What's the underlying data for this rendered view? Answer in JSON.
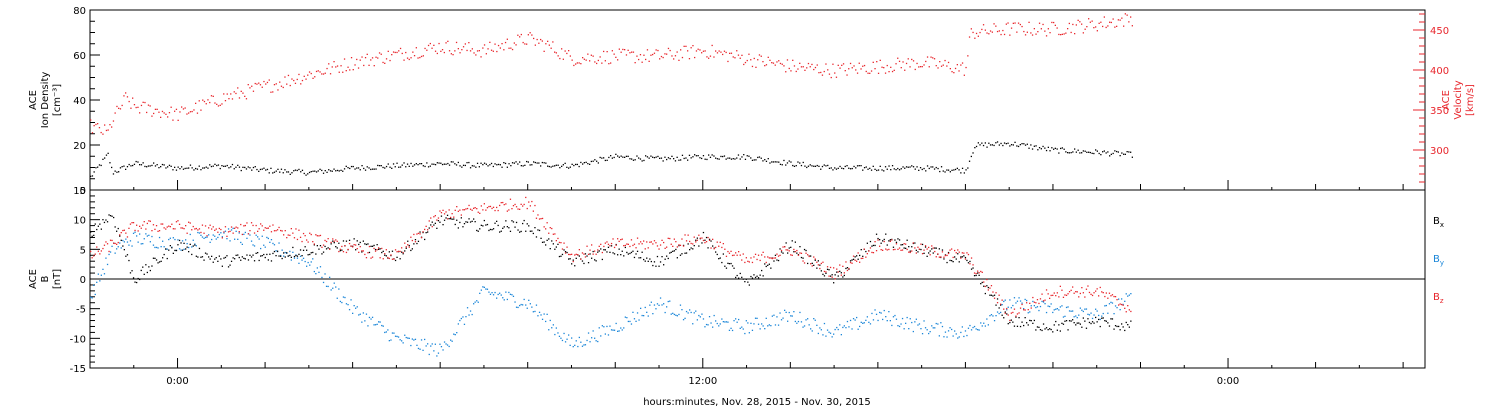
{
  "xlabel": "hours:minutes, Nov. 28, 2015 - Nov. 30, 2015",
  "x_ticks": [
    "0:00",
    "12:00",
    "0:00"
  ],
  "colors": {
    "black": "#000000",
    "red": "#e8262c",
    "blue": "#1a86d8"
  },
  "chart_data": [
    {
      "type": "scatter",
      "panel": "top",
      "ylabel_left": [
        "ACE",
        "Ion Density",
        "[cm⁻³]"
      ],
      "ylabel_right": [
        "ACE",
        "Velocity",
        "[km/s]"
      ],
      "x_unit": "hours since Nov. 28, 2015 00:00",
      "xlim": [
        -2,
        28.5
      ],
      "ylim_left": [
        0,
        80
      ],
      "yticks_left": [
        "0",
        "20",
        "40",
        "60",
        "80"
      ],
      "ylim_right": [
        250,
        475
      ],
      "yticks_right": [
        "300",
        "350",
        "400",
        "450"
      ],
      "series": [
        {
          "name": "Ion Density",
          "axis": "left",
          "color": "black",
          "x": [
            -2,
            -1.5,
            -1.6,
            -1,
            0,
            1,
            2,
            3,
            4,
            5,
            6,
            7,
            8,
            9,
            10,
            11,
            12,
            13,
            14,
            15,
            16,
            17,
            18,
            18.2,
            19,
            20,
            21,
            21.8
          ],
          "y": [
            6,
            8,
            16,
            12,
            10,
            11,
            9,
            8,
            10,
            11,
            12,
            11,
            12,
            11,
            15,
            14,
            15,
            15,
            12,
            10,
            10,
            10,
            9,
            20,
            21,
            18,
            17,
            16
          ]
        },
        {
          "name": "Velocity",
          "axis": "right",
          "color": "red",
          "x": [
            -2,
            -1.6,
            -1.5,
            -1.2,
            -1,
            0,
            1,
            2,
            3,
            4,
            5,
            6,
            7,
            8,
            8.5,
            9,
            10,
            11,
            12,
            13,
            14,
            15,
            16,
            17,
            18,
            18.1,
            18.2,
            19,
            20,
            21,
            21.8
          ],
          "y": [
            330,
            322,
            338,
            365,
            355,
            345,
            365,
            380,
            395,
            410,
            420,
            430,
            425,
            440,
            430,
            415,
            418,
            418,
            425,
            415,
            405,
            400,
            405,
            410,
            402,
            445,
            448,
            452,
            452,
            458,
            465
          ]
        }
      ]
    },
    {
      "type": "scatter",
      "panel": "bottom",
      "ylabel_left": [
        "ACE",
        "B",
        "[nT]"
      ],
      "xlim": [
        -2,
        28.5
      ],
      "ylim": [
        -15,
        15
      ],
      "yticks": [
        "-15",
        "-10",
        "-5",
        "0",
        "5",
        "10",
        "15"
      ],
      "legend": [
        "Bx",
        "By",
        "Bz"
      ],
      "legend_placement": "right",
      "zero_line": true,
      "series": [
        {
          "name": "Bx",
          "color": "black",
          "x": [
            -2,
            -1.5,
            -1,
            0,
            1,
            2,
            3,
            4,
            5,
            6,
            7,
            8,
            9,
            10,
            11,
            12,
            13,
            14,
            15,
            16,
            17,
            18,
            19,
            20,
            21,
            21.8
          ],
          "y": [
            8,
            11,
            0,
            6,
            3,
            4,
            5,
            6,
            4,
            10,
            9,
            9,
            3,
            5,
            3,
            7,
            -1,
            6,
            0,
            7,
            5,
            3,
            -7,
            -8,
            -7,
            -8
          ]
        },
        {
          "name": "By",
          "color": "blue",
          "x": [
            -2,
            -1.5,
            -1,
            0,
            1,
            2,
            3,
            4,
            5,
            6,
            7,
            8,
            9,
            10,
            11,
            12,
            13,
            14,
            15,
            16,
            17,
            18,
            19,
            20,
            21,
            21.8
          ],
          "y": [
            -3,
            5,
            7,
            6,
            8,
            6,
            3,
            -5,
            -10,
            -12,
            -2,
            -4,
            -11,
            -8,
            -4,
            -7,
            -8,
            -6,
            -9,
            -6,
            -8,
            -9,
            -4,
            -5,
            -6,
            -3
          ]
        },
        {
          "name": "Bz",
          "color": "red",
          "x": [
            -2,
            -1.5,
            -1,
            0,
            1,
            2,
            3,
            4,
            5,
            6,
            7,
            8,
            9,
            10,
            11,
            12,
            13,
            14,
            15,
            16,
            17,
            18,
            19,
            20,
            21,
            21.8
          ],
          "y": [
            4,
            6,
            9,
            9,
            8,
            9,
            7,
            5,
            4,
            11,
            12,
            13,
            4,
            6,
            6,
            7,
            3,
            5,
            1,
            6,
            5,
            4,
            -6,
            -2,
            -2,
            -5
          ]
        }
      ]
    }
  ]
}
